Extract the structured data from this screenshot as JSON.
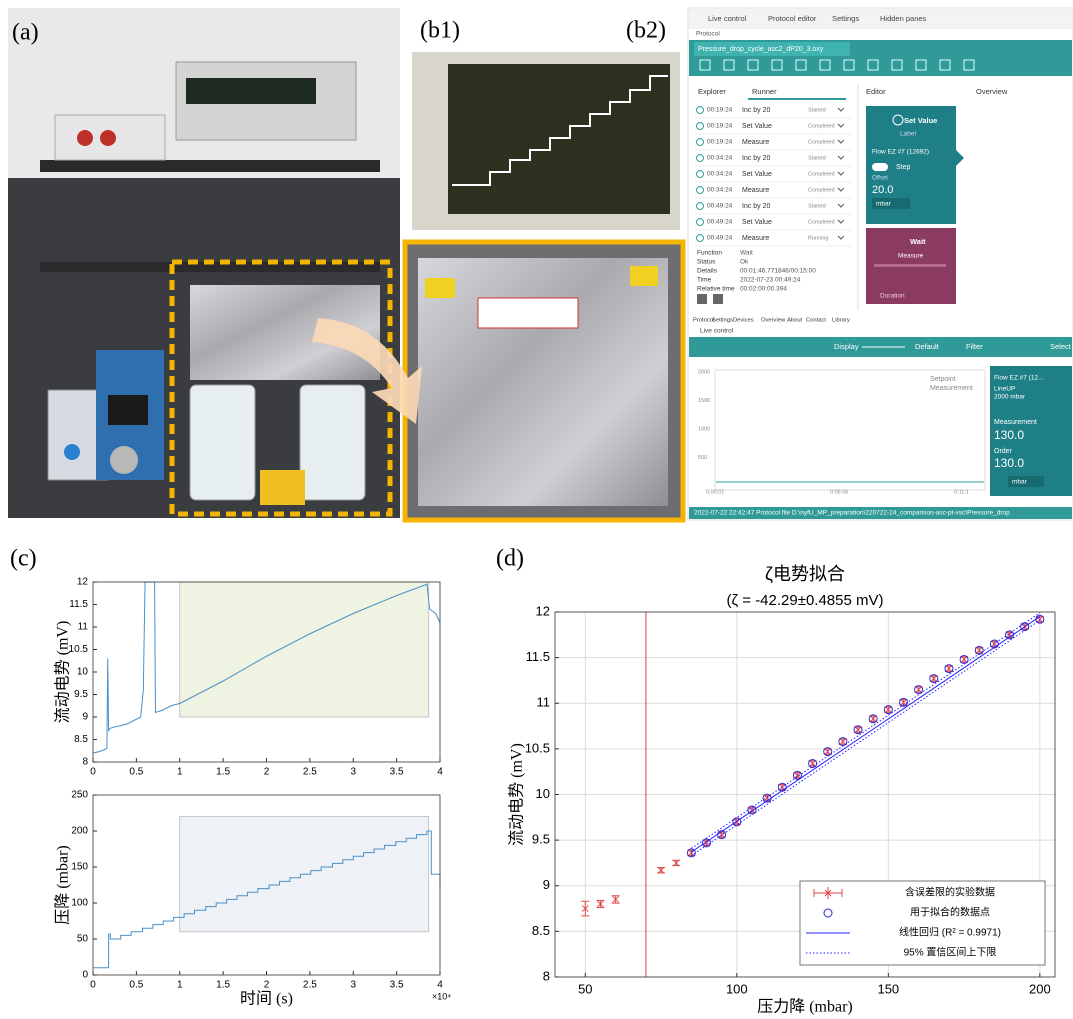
{
  "panels": {
    "a": "(a)",
    "b1": "(b1)",
    "b2": "(b2)",
    "c": "(c)",
    "d": "(d)"
  },
  "screenshot": {
    "menu": [
      "Live control",
      "Protocol editor",
      "Settings",
      "Hidden panes"
    ],
    "section": "Protocol",
    "file_tab": "Pressure_drop_cycle_asc2_dP20_3.oxy",
    "panel_tabs": [
      "Explorer",
      "Runner",
      "Editor",
      "Overview"
    ],
    "runner": [
      {
        "time": "00:19:24",
        "step": "Inc by 20",
        "status": "Started"
      },
      {
        "time": "00:19:24",
        "step": "Set Value",
        "status": "Completed"
      },
      {
        "time": "00:19:24",
        "step": "Measure",
        "status": "Completed"
      },
      {
        "time": "00:34:24",
        "step": "Inc by 20",
        "status": "Started"
      },
      {
        "time": "00:34:24",
        "step": "Set Value",
        "status": "Completed"
      },
      {
        "time": "00:34:24",
        "step": "Measure",
        "status": "Completed"
      },
      {
        "time": "00:49:24",
        "step": "Inc by 20",
        "status": "Started"
      },
      {
        "time": "00:49:24",
        "step": "Set Value",
        "status": "Completed"
      },
      {
        "time": "00:49:24",
        "step": "Measure",
        "status": "Running"
      }
    ],
    "details": [
      [
        "Function",
        "Wait"
      ],
      [
        "Status",
        "Ok"
      ],
      [
        "Details",
        "00:01:46.771846/00:15:00"
      ],
      [
        "Time",
        "2022-07-23 00:49:24"
      ],
      [
        "Relative time",
        "00:02:00:00.394"
      ]
    ],
    "set_value_card": {
      "title": "Set Value",
      "label": "Label",
      "device": "Flow EZ #7 (12692)",
      "mode": "Step",
      "offset_label": "Offset",
      "offset": "20.0",
      "unit": "mbar"
    },
    "wait_card": {
      "title": "Wait",
      "label": "Measure",
      "duration": "Duration"
    },
    "bottom_tabs": [
      "Protocol",
      "Settings",
      "Devices",
      "Overview",
      "About",
      "Contact",
      "Library"
    ],
    "live_title": "Live control",
    "live_toolbar": [
      "Display",
      "Default",
      "Filter",
      "Select"
    ],
    "live_legend": [
      "Setpoint",
      "Measurement"
    ],
    "live_yticks": [
      "2000",
      "1500",
      "1000",
      "500"
    ],
    "live_xticks": [
      "0:00:01",
      "0:05:06",
      "0:11:1"
    ],
    "device_card": {
      "name": "Flow EZ #7 (12...",
      "line": "LineUP",
      "range": "2000 mbar",
      "measurement_label": "Measurement",
      "measurement": "130.0",
      "order_label": "Order",
      "order": "130.0",
      "unit": "mbar"
    },
    "status_bar": "2022-07-22 22:42:47  Protocol file D:\\nyfU_MP_preparation\\220722-24_comparison-asc-pt-vsc\\Pressure_drop"
  },
  "chart_data": [
    {
      "type": "line",
      "ylabel": "流动电势 (mV)",
      "color": "#4a90c8",
      "x": [
        0,
        0.05,
        0.1,
        0.16,
        0.17,
        0.18,
        0.2,
        0.25,
        0.3,
        0.4,
        0.5,
        0.55,
        0.58,
        0.6,
        0.62,
        0.66,
        0.7,
        0.71,
        0.72,
        0.8,
        0.9,
        1,
        1.5,
        2,
        2.5,
        3,
        3.5,
        3.85,
        3.88,
        3.95,
        4
      ],
      "values": [
        8.2,
        8.22,
        8.25,
        8.3,
        10.3,
        8.7,
        8.75,
        8.78,
        8.8,
        8.85,
        8.95,
        9.0,
        9.6,
        12,
        12,
        12,
        12,
        12,
        9.1,
        9.15,
        9.25,
        9.3,
        9.8,
        10.35,
        10.85,
        11.3,
        11.7,
        11.95,
        11.4,
        11.3,
        11.1
      ],
      "highlight": {
        "x": [
          1,
          3.87
        ],
        "y": [
          9,
          12
        ],
        "color": "#eef3e2"
      },
      "xlim": [
        0,
        4
      ],
      "xticks": [
        0,
        0.5,
        1,
        1.5,
        2,
        2.5,
        3,
        3.5,
        4
      ],
      "ylim": [
        8,
        12
      ],
      "yticks": [
        8,
        8.5,
        9,
        9.5,
        10,
        10.5,
        11,
        11.5,
        12
      ]
    },
    {
      "type": "line",
      "step": true,
      "ylabel": "压降 (mbar)",
      "xlabel": "时间 (s)",
      "x_offset_label": "×10⁴",
      "color": "#4a90c8",
      "x": [
        0,
        0.17,
        0.18,
        0.2,
        0.32,
        0.44,
        0.57,
        0.69,
        0.81,
        0.93,
        1.05,
        1.17,
        1.3,
        1.42,
        1.54,
        1.66,
        1.78,
        1.9,
        2.03,
        2.15,
        2.27,
        2.39,
        2.51,
        2.63,
        2.76,
        2.88,
        3.0,
        3.12,
        3.24,
        3.36,
        3.49,
        3.61,
        3.73,
        3.85,
        3.9,
        4.0
      ],
      "values": [
        10,
        10,
        57,
        50,
        55,
        60,
        65,
        70,
        75,
        80,
        85,
        90,
        95,
        100,
        105,
        110,
        115,
        120,
        125,
        130,
        135,
        140,
        145,
        150,
        155,
        160,
        165,
        170,
        175,
        180,
        185,
        190,
        195,
        200,
        140,
        120
      ],
      "highlight": {
        "x": [
          1,
          3.87
        ],
        "y": [
          60,
          220
        ],
        "color": "#eef2f7"
      },
      "xlim": [
        0,
        4
      ],
      "xticks": [
        0,
        0.5,
        1,
        1.5,
        2,
        2.5,
        3,
        3.5,
        4
      ],
      "ylim": [
        0,
        250
      ],
      "yticks": [
        0,
        50,
        100,
        150,
        200,
        250
      ]
    },
    {
      "type": "scatter",
      "title": "ζ电势拟合",
      "subtitle": "(ζ = -42.29±0.4855 mV)",
      "xlabel": "压力降 (mbar)",
      "ylabel": "流动电势 (mV)",
      "grid": true,
      "legend": "lower right",
      "vline": 70,
      "vline_color": "#e06060",
      "xlim": [
        40,
        205
      ],
      "xticks": [
        50,
        100,
        150,
        200
      ],
      "ylim": [
        8,
        12
      ],
      "yticks": [
        8,
        8.5,
        9,
        9.5,
        10,
        10.5,
        11,
        11.5,
        12
      ],
      "series": [
        {
          "name": "含误差限的实验数据",
          "color": "#e04a4a",
          "marker": "errorbar",
          "x": [
            50,
            55,
            60,
            75,
            80,
            85,
            90,
            95,
            100,
            105,
            110,
            115,
            120,
            125,
            130,
            135,
            140,
            145,
            150,
            155,
            160,
            165,
            170,
            175,
            180,
            185,
            190,
            195,
            200
          ],
          "values": [
            8.75,
            8.8,
            8.85,
            9.17,
            9.25,
            9.36,
            9.47,
            9.56,
            9.7,
            9.83,
            9.96,
            10.08,
            10.21,
            10.34,
            10.47,
            10.58,
            10.71,
            10.83,
            10.93,
            11.01,
            11.15,
            11.27,
            11.38,
            11.48,
            11.58,
            11.65,
            11.75,
            11.84,
            11.92
          ],
          "errors": [
            0.08,
            0.04,
            0.04,
            0.03,
            0.03,
            0.03,
            0.03,
            0.03,
            0.03,
            0.03,
            0.03,
            0.03,
            0.03,
            0.03,
            0.03,
            0.03,
            0.03,
            0.03,
            0.03,
            0.03,
            0.03,
            0.03,
            0.03,
            0.03,
            0.03,
            0.03,
            0.03,
            0.03,
            0.03
          ]
        },
        {
          "name": "用于拟合的数据点",
          "color": "#2a2ad8",
          "marker": "circle",
          "x": [
            85,
            90,
            95,
            100,
            105,
            110,
            115,
            120,
            125,
            130,
            135,
            140,
            145,
            150,
            155,
            160,
            165,
            170,
            175,
            180,
            185,
            190,
            195,
            200
          ],
          "values": [
            9.36,
            9.47,
            9.56,
            9.7,
            9.83,
            9.96,
            10.08,
            10.21,
            10.34,
            10.47,
            10.58,
            10.71,
            10.83,
            10.93,
            11.01,
            11.15,
            11.27,
            11.38,
            11.48,
            11.58,
            11.65,
            11.75,
            11.84,
            11.92
          ]
        },
        {
          "name": "线性回归 (R² = 0.9971)",
          "color": "#2020ff",
          "marker": "line",
          "x": [
            85,
            200
          ],
          "values": [
            9.37,
            11.95
          ]
        },
        {
          "name": "95% 置信区间上下限",
          "color": "#2020ff",
          "marker": "dotted",
          "x": [
            85,
            200
          ],
          "values": [
            9.33,
            11.91
          ],
          "values_upper": [
            9.41,
            11.99
          ]
        }
      ]
    }
  ]
}
